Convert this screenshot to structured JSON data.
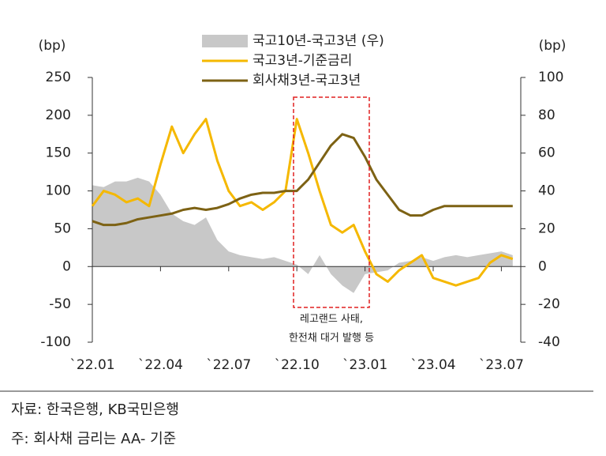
{
  "chart_data": {
    "type": "line",
    "left_axis_label": "(bp)",
    "right_axis_label": "(bp)",
    "categories": [
      "`22.01",
      null,
      null,
      null,
      null,
      null,
      "`22.04",
      null,
      null,
      null,
      null,
      null,
      "`22.07",
      null,
      null,
      null,
      null,
      null,
      "`22.10",
      null,
      null,
      null,
      null,
      null,
      "`23.01",
      null,
      null,
      null,
      null,
      null,
      "`23.04",
      null,
      null,
      null,
      null,
      null,
      "`23.07",
      null
    ],
    "ylim": [
      -100,
      250
    ],
    "yticks": [
      -100,
      -50,
      0,
      50,
      100,
      150,
      200,
      250
    ],
    "y2lim": [
      -40,
      100
    ],
    "y2ticks": [
      -40,
      -20,
      0,
      20,
      40,
      60,
      80,
      100
    ],
    "series": [
      {
        "name": "국고10년-국고3년 (우)",
        "color": "#c8c8c8",
        "style": "area",
        "axis": "y2",
        "values": [
          43,
          42,
          45,
          45,
          47,
          45,
          38,
          28,
          24,
          22,
          26,
          14,
          8,
          6,
          5,
          4,
          5,
          3,
          1,
          -4,
          6,
          -4,
          -10,
          -14,
          -4,
          -3,
          -2,
          2,
          3,
          5,
          3,
          5,
          6,
          5,
          6,
          7,
          8,
          6
        ]
      },
      {
        "name": "국고3년-기준금리",
        "color": "#f5b800",
        "style": "line",
        "values": [
          80,
          100,
          95,
          85,
          90,
          80,
          135,
          185,
          150,
          175,
          195,
          140,
          100,
          80,
          85,
          75,
          85,
          100,
          195,
          150,
          100,
          55,
          45,
          55,
          20,
          -10,
          -20,
          -5,
          5,
          15,
          -15,
          -20,
          -25,
          -20,
          -15,
          5,
          15,
          10
        ]
      },
      {
        "name": "회사채3년-국고3년",
        "color": "#7d6214",
        "style": "line",
        "axis": "y2",
        "values": [
          24,
          22,
          22,
          23,
          25,
          26,
          27,
          28,
          30,
          31,
          30,
          31,
          33,
          36,
          38,
          39,
          39,
          40,
          40,
          46,
          55,
          64,
          70,
          68,
          58,
          46,
          38,
          30,
          27,
          27,
          30,
          32,
          32,
          32,
          32,
          32,
          32,
          32
        ]
      }
    ],
    "annotation": [
      "레고랜드 사태,",
      "한전채 대거 발행 등"
    ],
    "source": "자료: 한국은행, KB국민은행",
    "footnote": "주: 회사채 금리는 AA- 기준"
  }
}
